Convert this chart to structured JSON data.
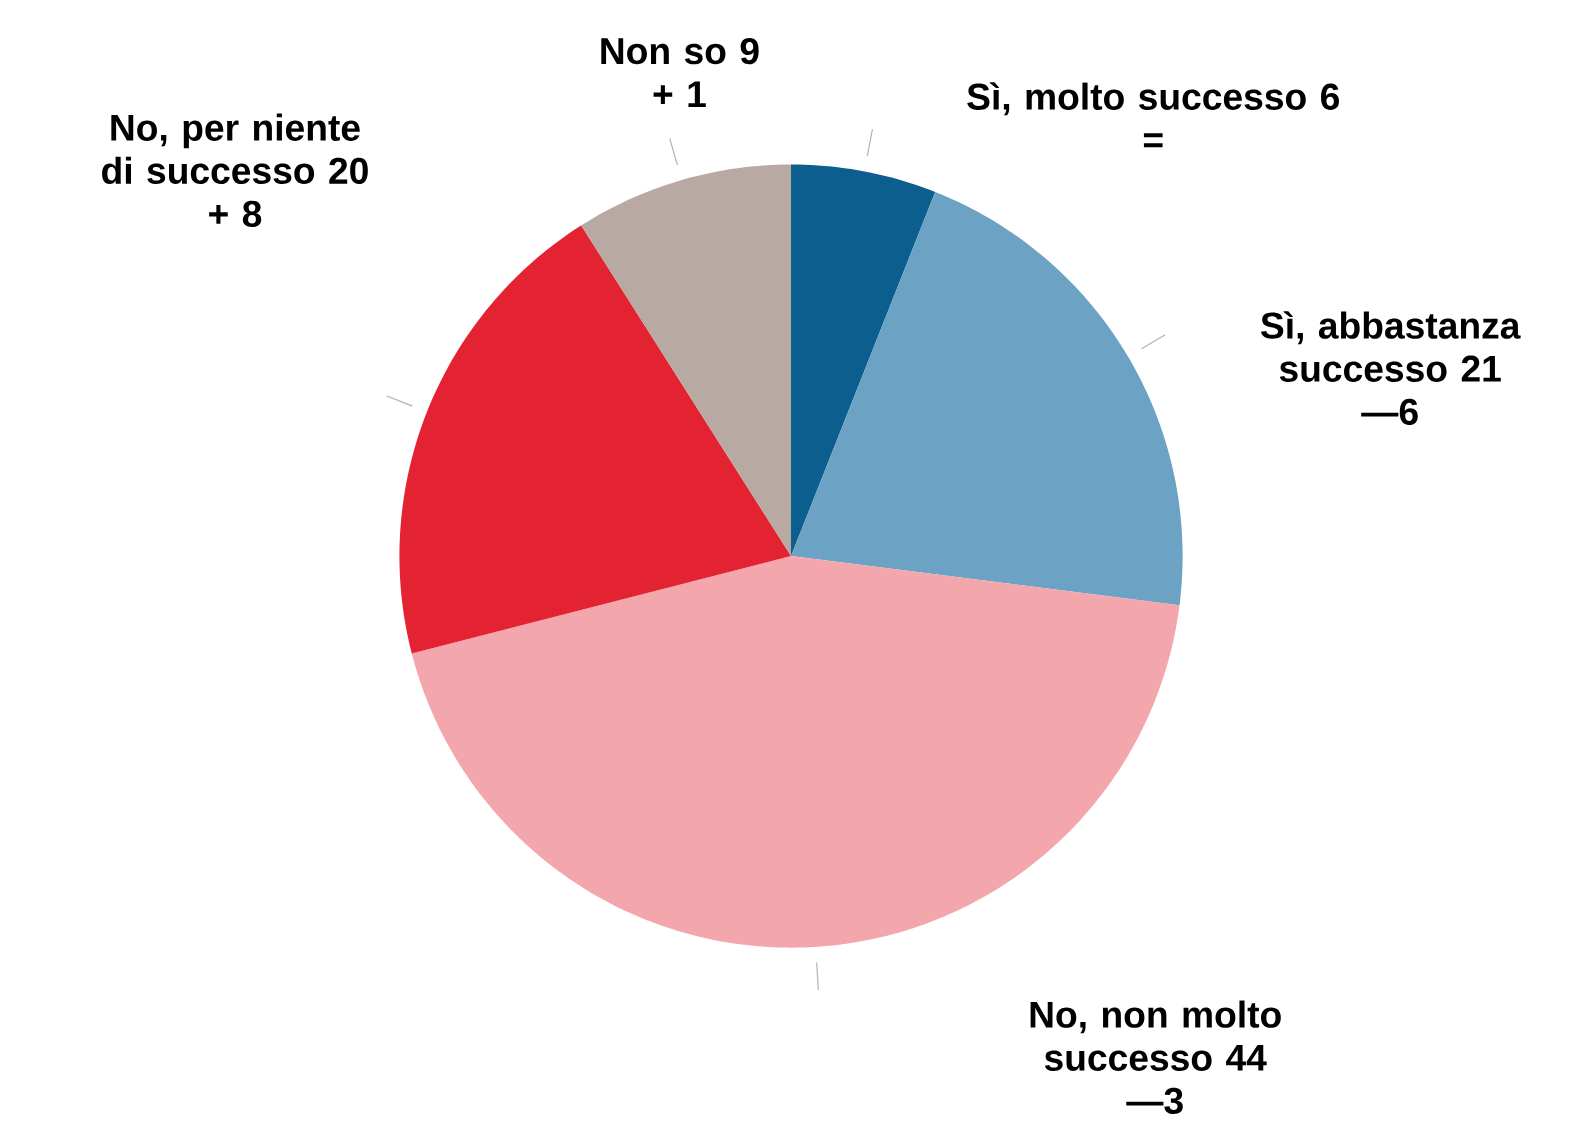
{
  "chart_data": {
    "type": "pie",
    "categories": [
      "Sì, molto successo",
      "Sì, abbastanza successo",
      "No, non molto successo",
      "No, per niente di successo",
      "Non so"
    ],
    "values": [
      6,
      21,
      44,
      20,
      9
    ],
    "colors": [
      "#0b5e8e",
      "#6ca2c4",
      "#f4a6ad",
      "#e32232",
      "#b8aaa3"
    ],
    "value_labels": [
      "6",
      "21",
      "44",
      "20",
      "9"
    ],
    "annotations": [
      "=",
      "—6",
      "—3",
      "+ 8",
      "+ 1"
    ]
  }
}
